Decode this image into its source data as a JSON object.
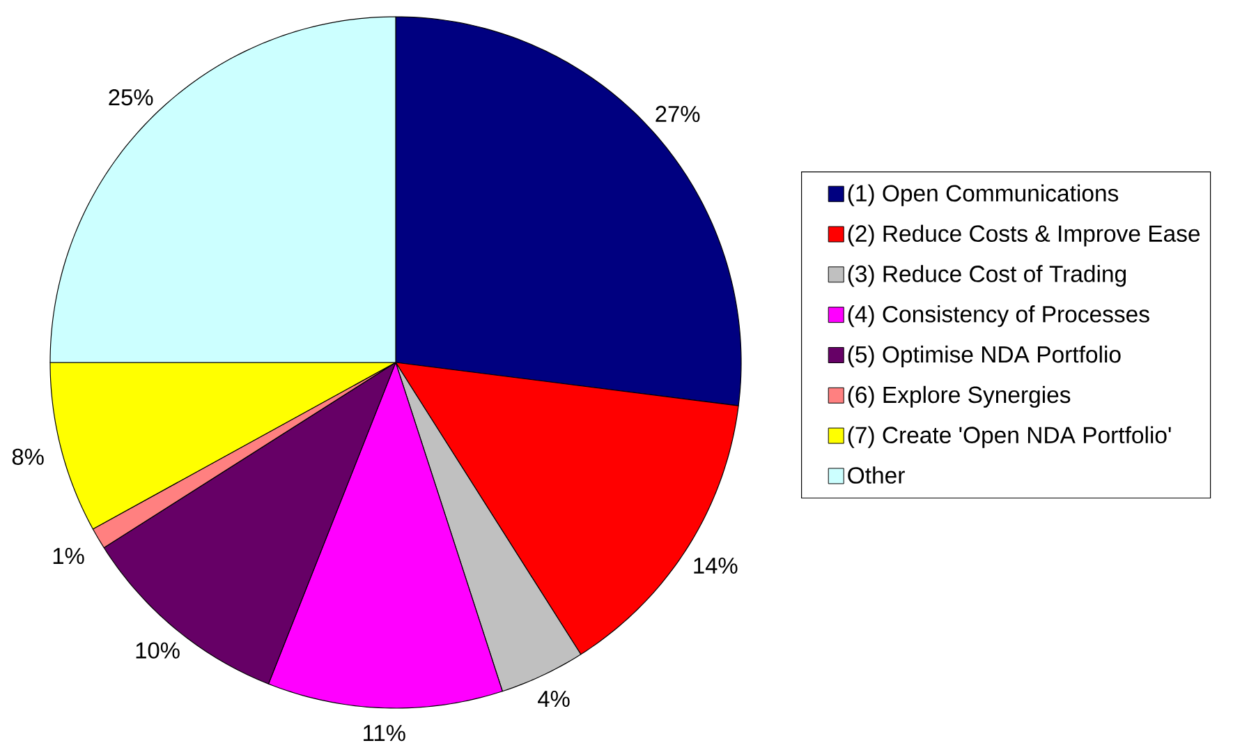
{
  "chart_data": {
    "type": "pie",
    "categories": [
      "(1) Open Communications",
      "(2) Reduce Costs & Improve Ease",
      "(3) Reduce Cost of Trading",
      "(4) Consistency of Processes",
      "(5) Optimise NDA Portfolio",
      "(6) Explore Synergies",
      "(7) Create 'Open NDA Portfolio'",
      "Other"
    ],
    "values": [
      27,
      14,
      4,
      11,
      10,
      1,
      8,
      25
    ],
    "colors": [
      "#000080",
      "#ff0000",
      "#c0c0c0",
      "#ff00ff",
      "#660066",
      "#ff8080",
      "#ffff00",
      "#ccffff"
    ],
    "value_labels": [
      "27%",
      "14%",
      "4%",
      "11%",
      "10%",
      "1%",
      "8%",
      "25%"
    ],
    "legend": "right"
  }
}
